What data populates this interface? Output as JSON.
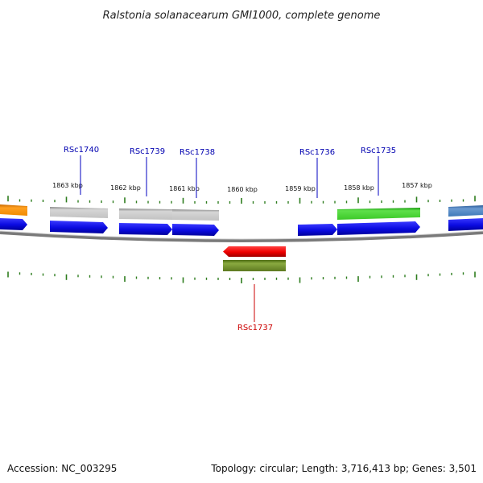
{
  "title": "Ralstonia solanacearum GMI1000, complete genome",
  "footer": {
    "accession": "Accession: NC_003295",
    "summary": "Topology: circular; Length: 3,716,413 bp; Genes: 3,501"
  },
  "colors": {
    "backbone": "#8a8a8a",
    "tick": "#2e7d1e",
    "forward_cds": "#1010e8",
    "reverse_cds": "#ee1010",
    "label_forward": "#0000b0",
    "label_reverse": "#cc0000"
  },
  "scale_labels": [
    "1863 kbp",
    "1862 kbp",
    "1861 kbp",
    "1860 kbp",
    "1859 kbp",
    "1858 kbp",
    "1857 kbp"
  ],
  "gene_labels": [
    {
      "name": "RSc1740",
      "strand": "forward"
    },
    {
      "name": "RSc1739",
      "strand": "forward"
    },
    {
      "name": "RSc1738",
      "strand": "forward"
    },
    {
      "name": "RSc1736",
      "strand": "forward"
    },
    {
      "name": "RSc1735",
      "strand": "forward"
    },
    {
      "name": "RSc1737",
      "strand": "reverse"
    }
  ],
  "feature_colors": {
    "orange": "#f08a00",
    "grey": "#b4b4b4",
    "green": "#3ccc28",
    "steelblue": "#3e78b8",
    "olive": "#6e8c28"
  }
}
